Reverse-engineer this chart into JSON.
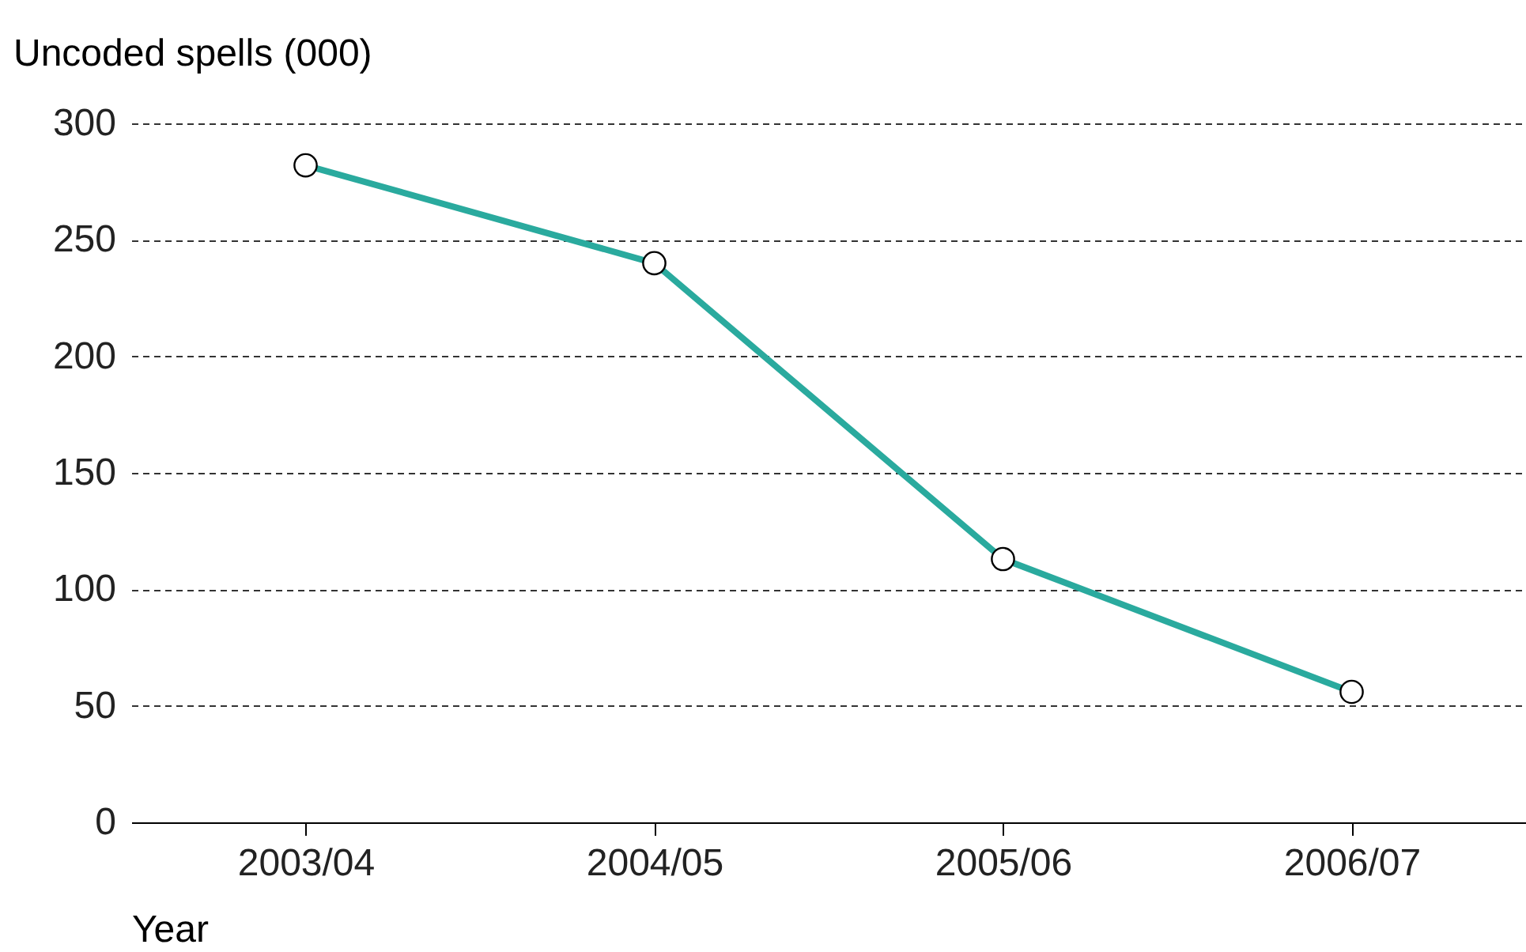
{
  "chart_data": {
    "type": "line",
    "xlabel": "Year",
    "ylabel": "Uncoded spells (000)",
    "categories": [
      "2003/04",
      "2004/05",
      "2005/06",
      "2006/07"
    ],
    "series": [
      {
        "color": "#2aaa9e",
        "values": [
          282,
          240,
          113,
          56
        ]
      }
    ],
    "ylim": [
      0,
      300
    ],
    "yticks": [
      0,
      50,
      100,
      150,
      200,
      250,
      300
    ],
    "grid": "y",
    "marker": "circle",
    "line_style": "solid",
    "legend": false
  }
}
